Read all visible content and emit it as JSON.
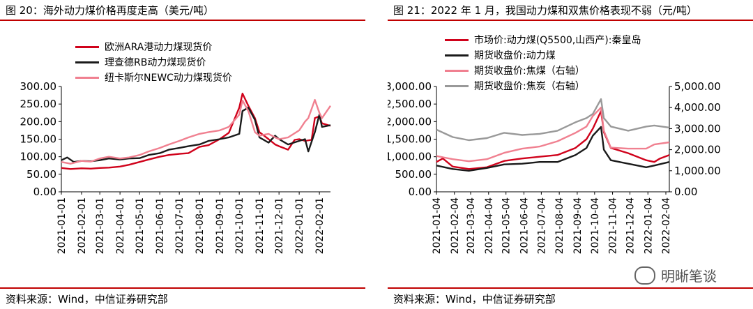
{
  "left": {
    "title": "图 20：海外动力煤价格再度走高（美元/吨）",
    "source": "资料来源：Wind，中信证券研究部"
  },
  "right": {
    "title": "图 21：2022 年 1 月，我国动力煤和双焦价格表现不弱（元/吨）",
    "source": "资料来源：Wind，中信证券研究部"
  },
  "watermark": "明晰笔谈",
  "chart_data": [
    {
      "type": "line",
      "title": "海外动力煤价格再度走高（美元/吨）",
      "x_ticks": [
        "2021-01-01",
        "2021-02-01",
        "2021-03-01",
        "2021-04-01",
        "2021-05-01",
        "2021-06-01",
        "2021-07-01",
        "2021-08-01",
        "2021-09-01",
        "2021-10-01",
        "2021-11-01",
        "2021-12-01",
        "2022-01-01",
        "2022-02-01"
      ],
      "x_range": [
        "2021-01-01",
        "2022-02-18"
      ],
      "ylim": [
        0,
        300
      ],
      "y_ticks": [
        "0.00",
        "50.00",
        "100.00",
        "150.00",
        "200.00",
        "250.00",
        "300.00"
      ],
      "grid": false,
      "legend": "top-left",
      "series": [
        {
          "name": "欧洲ARA港动力煤现货价",
          "color": "#d0021b",
          "points": [
            [
              "2021-01-01",
              68
            ],
            [
              "2021-01-15",
              65
            ],
            [
              "2021-02-01",
              67
            ],
            [
              "2021-02-15",
              66
            ],
            [
              "2021-03-01",
              68
            ],
            [
              "2021-03-15",
              69
            ],
            [
              "2021-04-01",
              72
            ],
            [
              "2021-04-15",
              77
            ],
            [
              "2021-05-01",
              85
            ],
            [
              "2021-05-15",
              92
            ],
            [
              "2021-06-01",
              100
            ],
            [
              "2021-06-15",
              105
            ],
            [
              "2021-07-01",
              108
            ],
            [
              "2021-07-15",
              110
            ],
            [
              "2021-08-01",
              128
            ],
            [
              "2021-08-15",
              133
            ],
            [
              "2021-09-01",
              150
            ],
            [
              "2021-09-15",
              168
            ],
            [
              "2021-10-01",
              240
            ],
            [
              "2021-10-06",
              280
            ],
            [
              "2021-10-15",
              245
            ],
            [
              "2021-10-25",
              210
            ],
            [
              "2021-11-01",
              170
            ],
            [
              "2021-11-15",
              150
            ],
            [
              "2021-11-25",
              135
            ],
            [
              "2021-12-01",
              130
            ],
            [
              "2021-12-15",
              120
            ],
            [
              "2021-12-25",
              148
            ],
            [
              "2022-01-01",
              150
            ],
            [
              "2022-01-10",
              145
            ],
            [
              "2022-01-20",
              148
            ],
            [
              "2022-01-25",
              210
            ],
            [
              "2022-02-01",
              215
            ],
            [
              "2022-02-05",
              195
            ],
            [
              "2022-02-18",
              188
            ]
          ]
        },
        {
          "name": "理查德RB动力煤现货价",
          "color": "#1a1a1a",
          "points": [
            [
              "2021-01-01",
              90
            ],
            [
              "2021-01-10",
              98
            ],
            [
              "2021-01-20",
              85
            ],
            [
              "2021-02-01",
              88
            ],
            [
              "2021-02-15",
              87
            ],
            [
              "2021-03-01",
              90
            ],
            [
              "2021-03-15",
              95
            ],
            [
              "2021-04-01",
              92
            ],
            [
              "2021-04-15",
              95
            ],
            [
              "2021-05-01",
              96
            ],
            [
              "2021-05-15",
              105
            ],
            [
              "2021-06-01",
              110
            ],
            [
              "2021-06-15",
              120
            ],
            [
              "2021-07-01",
              125
            ],
            [
              "2021-07-15",
              130
            ],
            [
              "2021-08-01",
              135
            ],
            [
              "2021-08-15",
              145
            ],
            [
              "2021-09-01",
              150
            ],
            [
              "2021-09-15",
              155
            ],
            [
              "2021-10-01",
              165
            ],
            [
              "2021-10-06",
              230
            ],
            [
              "2021-10-15",
              240
            ],
            [
              "2021-10-25",
              205
            ],
            [
              "2021-11-01",
              155
            ],
            [
              "2021-11-15",
              140
            ],
            [
              "2021-11-25",
              160
            ],
            [
              "2021-12-01",
              150
            ],
            [
              "2021-12-15",
              135
            ],
            [
              "2022-01-01",
              145
            ],
            [
              "2022-01-10",
              150
            ],
            [
              "2022-01-15",
              115
            ],
            [
              "2022-01-25",
              170
            ],
            [
              "2022-02-01",
              220
            ],
            [
              "2022-02-05",
              185
            ],
            [
              "2022-02-18",
              190
            ]
          ]
        },
        {
          "name": "纽卡斯尔NEWC动力煤现货价",
          "color": "#f08090",
          "points": [
            [
              "2021-01-01",
              85
            ],
            [
              "2021-01-15",
              80
            ],
            [
              "2021-02-01",
              88
            ],
            [
              "2021-02-15",
              86
            ],
            [
              "2021-03-01",
              95
            ],
            [
              "2021-03-15",
              100
            ],
            [
              "2021-04-01",
              95
            ],
            [
              "2021-04-15",
              98
            ],
            [
              "2021-05-01",
              105
            ],
            [
              "2021-05-15",
              115
            ],
            [
              "2021-06-01",
              125
            ],
            [
              "2021-06-15",
              135
            ],
            [
              "2021-07-01",
              145
            ],
            [
              "2021-07-15",
              155
            ],
            [
              "2021-08-01",
              165
            ],
            [
              "2021-08-15",
              170
            ],
            [
              "2021-09-01",
              175
            ],
            [
              "2021-09-15",
              185
            ],
            [
              "2021-10-01",
              220
            ],
            [
              "2021-10-06",
              260
            ],
            [
              "2021-10-15",
              230
            ],
            [
              "2021-10-25",
              170
            ],
            [
              "2021-11-01",
              160
            ],
            [
              "2021-11-15",
              165
            ],
            [
              "2021-11-25",
              155
            ],
            [
              "2021-12-01",
              150
            ],
            [
              "2021-12-15",
              155
            ],
            [
              "2022-01-01",
              175
            ],
            [
              "2022-01-10",
              200
            ],
            [
              "2022-01-15",
              210
            ],
            [
              "2022-01-25",
              262
            ],
            [
              "2022-02-01",
              225
            ],
            [
              "2022-02-05",
              210
            ],
            [
              "2022-02-18",
              245
            ]
          ]
        }
      ]
    },
    {
      "type": "line",
      "title": "2022 年 1 月，我国动力煤和双焦价格表现不弱（元/吨）",
      "x_ticks": [
        "2021-01-04",
        "2021-02-04",
        "2021-03-04",
        "2021-04-04",
        "2021-05-04",
        "2021-06-04",
        "2021-07-04",
        "2021-08-04",
        "2021-09-04",
        "2021-10-04",
        "2021-11-04",
        "2021-12-04",
        "2022-01-04",
        "2022-02-04"
      ],
      "x_range": [
        "2021-01-04",
        "2022-02-10"
      ],
      "ylim_left": [
        0,
        3000
      ],
      "y_ticks_left": [
        "0.00",
        "500.00",
        "1,000.00",
        "1,500.00",
        "2,000.00",
        "2,500.00",
        "3,000.00"
      ],
      "ylim_right": [
        0,
        5000
      ],
      "y_ticks_right": [
        "0.00",
        "1,000.00",
        "2,000.00",
        "3,000.00",
        "4,000.00",
        "5,000.00"
      ],
      "grid": false,
      "legend": "top-left",
      "series": [
        {
          "name": "市场价:动力煤(Q5500,山西产):秦皇岛",
          "color": "#d0021b",
          "axis": "left",
          "points": [
            [
              "2021-01-04",
              850
            ],
            [
              "2021-01-15",
              950
            ],
            [
              "2021-02-01",
              720
            ],
            [
              "2021-03-01",
              650
            ],
            [
              "2021-04-01",
              700
            ],
            [
              "2021-05-01",
              880
            ],
            [
              "2021-06-01",
              950
            ],
            [
              "2021-07-01",
              1000
            ],
            [
              "2021-08-01",
              1050
            ],
            [
              "2021-09-01",
              1250
            ],
            [
              "2021-09-20",
              1500
            ],
            [
              "2021-10-01",
              1800
            ],
            [
              "2021-10-15",
              2300
            ],
            [
              "2021-10-20",
              1700
            ],
            [
              "2021-11-01",
              1250
            ],
            [
              "2021-12-01",
              1100
            ],
            [
              "2022-01-01",
              900
            ],
            [
              "2022-01-15",
              850
            ],
            [
              "2022-01-25",
              950
            ],
            [
              "2022-02-10",
              1050
            ]
          ]
        },
        {
          "name": "期货收盘价:动力煤",
          "color": "#1a1a1a",
          "axis": "left",
          "points": [
            [
              "2021-01-04",
              750
            ],
            [
              "2021-02-01",
              650
            ],
            [
              "2021-03-01",
              600
            ],
            [
              "2021-04-01",
              680
            ],
            [
              "2021-05-01",
              780
            ],
            [
              "2021-06-01",
              800
            ],
            [
              "2021-07-01",
              850
            ],
            [
              "2021-08-01",
              850
            ],
            [
              "2021-09-01",
              1050
            ],
            [
              "2021-09-20",
              1250
            ],
            [
              "2021-10-01",
              1600
            ],
            [
              "2021-10-15",
              1850
            ],
            [
              "2021-10-20",
              1200
            ],
            [
              "2021-11-01",
              900
            ],
            [
              "2021-12-01",
              800
            ],
            [
              "2022-01-01",
              700
            ],
            [
              "2022-01-15",
              750
            ],
            [
              "2022-02-10",
              850
            ]
          ]
        },
        {
          "name": "期货收盘价:焦煤（右轴）",
          "color": "#f08090",
          "axis": "right",
          "points": [
            [
              "2021-01-04",
              1700
            ],
            [
              "2021-02-01",
              1550
            ],
            [
              "2021-03-01",
              1450
            ],
            [
              "2021-04-01",
              1550
            ],
            [
              "2021-05-01",
              1850
            ],
            [
              "2021-06-01",
              2050
            ],
            [
              "2021-07-01",
              2150
            ],
            [
              "2021-08-01",
              2400
            ],
            [
              "2021-09-01",
              2800
            ],
            [
              "2021-09-20",
              3100
            ],
            [
              "2021-10-01",
              3600
            ],
            [
              "2021-10-15",
              4000
            ],
            [
              "2021-10-20",
              2900
            ],
            [
              "2021-11-01",
              2100
            ],
            [
              "2021-12-01",
              2050
            ],
            [
              "2022-01-01",
              2050
            ],
            [
              "2022-01-15",
              2250
            ],
            [
              "2022-02-10",
              2350
            ]
          ]
        },
        {
          "name": "期货收盘价:焦炭（右轴）",
          "color": "#999999",
          "axis": "right",
          "points": [
            [
              "2021-01-04",
              2950
            ],
            [
              "2021-02-01",
              2600
            ],
            [
              "2021-03-01",
              2450
            ],
            [
              "2021-04-01",
              2550
            ],
            [
              "2021-05-01",
              2800
            ],
            [
              "2021-06-01",
              2700
            ],
            [
              "2021-07-01",
              2750
            ],
            [
              "2021-08-01",
              2900
            ],
            [
              "2021-09-01",
              3300
            ],
            [
              "2021-09-20",
              3500
            ],
            [
              "2021-10-01",
              3700
            ],
            [
              "2021-10-15",
              4400
            ],
            [
              "2021-10-20",
              3500
            ],
            [
              "2021-11-01",
              3100
            ],
            [
              "2021-12-01",
              2900
            ],
            [
              "2022-01-01",
              3100
            ],
            [
              "2022-01-15",
              3150
            ],
            [
              "2022-02-10",
              3050
            ]
          ]
        }
      ]
    }
  ]
}
